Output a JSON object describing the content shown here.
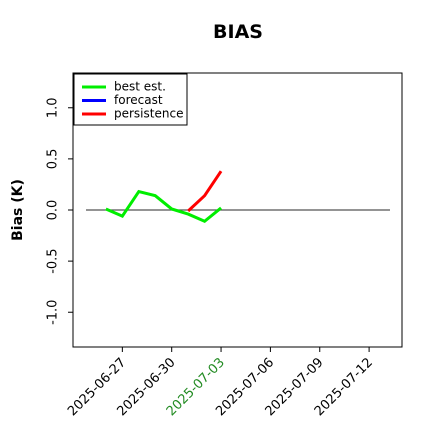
{
  "chart_data": {
    "type": "line",
    "title": "BIAS",
    "ylabel": "Bias (K)",
    "series": [
      {
        "name": "best est.",
        "color": "#00ee00",
        "x": [
          "2025-06-26",
          "2025-06-27",
          "2025-06-28",
          "2025-06-29",
          "2025-06-30",
          "2025-07-01",
          "2025-07-02",
          "2025-07-03"
        ],
        "values": [
          0.01,
          -0.06,
          0.18,
          0.14,
          0.01,
          -0.04,
          -0.11,
          0.02
        ]
      },
      {
        "name": "forecast",
        "color": "#0000ff",
        "x": [],
        "values": []
      },
      {
        "name": "persistence",
        "color": "#ff0000",
        "x": [
          "2025-07-01",
          "2025-07-02",
          "2025-07-03"
        ],
        "values": [
          -0.01,
          0.14,
          0.38
        ]
      }
    ],
    "reference_line": 0,
    "xlim": [
      "2025-06-24",
      "2025-07-14"
    ],
    "xticks": [
      "2025-06-27",
      "2025-06-30",
      "2025-07-03",
      "2025-07-06",
      "2025-07-09",
      "2025-07-12"
    ],
    "xtick_colors": [
      "#000000",
      "#000000",
      "#228b22",
      "#000000",
      "#000000",
      "#000000"
    ],
    "ylim": [
      -1.34,
      1.34
    ],
    "yticks": [
      {
        "value": -1,
        "label": "-1.0"
      },
      {
        "value": -0.5,
        "label": "-0.5"
      },
      {
        "value": 0,
        "label": "0.0"
      },
      {
        "value": 0.5,
        "label": "0.5"
      },
      {
        "value": 1,
        "label": "1.0"
      }
    ],
    "legend": "upper left"
  }
}
